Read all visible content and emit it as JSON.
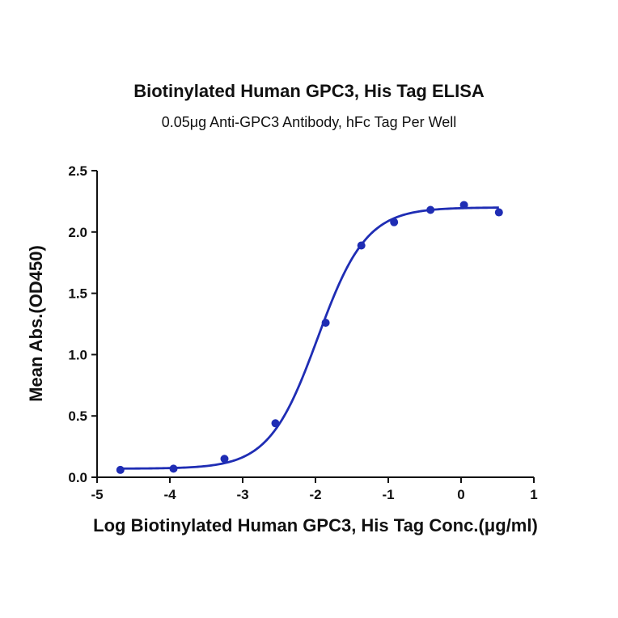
{
  "chart_data": {
    "type": "scatter",
    "title": "Biotinylated Human GPC3, His Tag ELISA",
    "subtitle": "0.05μg Anti-GPC3 Antibody, hFc Tag Per Well",
    "xlabel": "Log Biotinylated Human GPC3, His Tag Conc.(μg/ml)",
    "ylabel": "Mean Abs.(OD450)",
    "xlim": [
      -5,
      1
    ],
    "ylim": [
      0,
      2.5
    ],
    "x_ticks": [
      "-5",
      "-4",
      "-3",
      "-2",
      "-1",
      "0",
      "1"
    ],
    "y_ticks": [
      "0.0",
      "0.5",
      "1.0",
      "1.5",
      "2.0",
      "2.5"
    ],
    "grid": false,
    "points": {
      "x": [
        -4.68,
        -3.95,
        -3.25,
        -2.55,
        -1.86,
        -1.37,
        -0.92,
        -0.42,
        0.04,
        0.52
      ],
      "y": [
        0.06,
        0.07,
        0.15,
        0.44,
        1.26,
        1.89,
        2.08,
        2.18,
        2.22,
        2.16
      ]
    },
    "fit": {
      "model": "4PL",
      "bottom": 0.07,
      "top": 2.2,
      "logEC50": -1.97,
      "hill": 1.3,
      "x_range": [
        -4.68,
        0.52
      ]
    },
    "color": "#1f2db4"
  }
}
